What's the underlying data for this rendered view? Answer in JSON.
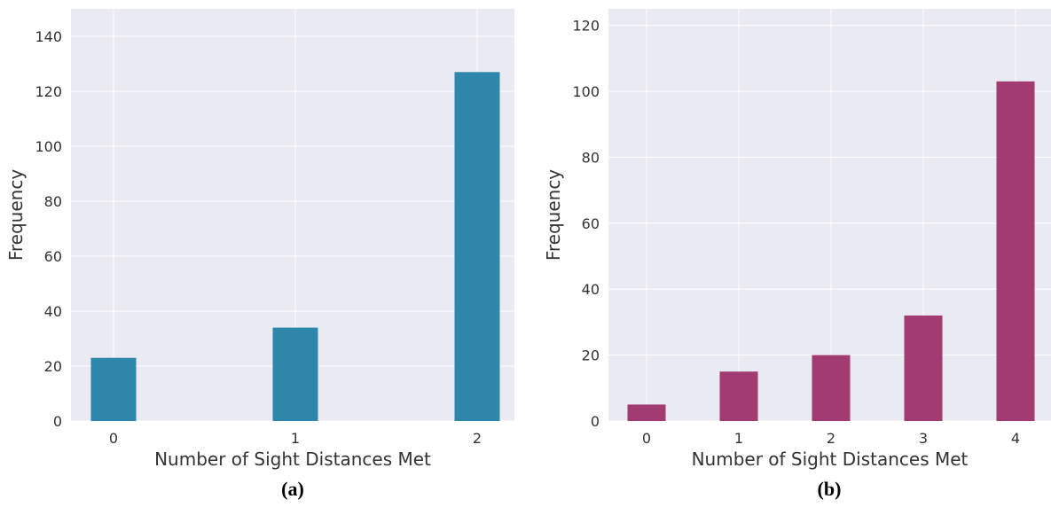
{
  "chart_data": [
    {
      "type": "bar",
      "caption": "(a)",
      "categories": [
        "0",
        "1",
        "2"
      ],
      "values": [
        23,
        34,
        127
      ],
      "xlabel": "Number of Sight Distances Met",
      "ylabel": "Frequency",
      "ylim": [
        0,
        150
      ],
      "yticks": [
        0,
        20,
        40,
        60,
        80,
        100,
        120,
        140
      ],
      "grid": true,
      "color": "#2e86ab",
      "background": "#eaeaf2"
    },
    {
      "type": "bar",
      "caption": "(b)",
      "categories": [
        "0",
        "1",
        "2",
        "3",
        "4"
      ],
      "values": [
        5,
        15,
        20,
        32,
        103
      ],
      "xlabel": "Number of Sight Distances Met",
      "ylabel": "Frequency",
      "ylim": [
        0,
        125
      ],
      "yticks": [
        0,
        20,
        40,
        60,
        80,
        100,
        120
      ],
      "grid": true,
      "color": "#a23b72",
      "background": "#eaeaf2"
    }
  ]
}
